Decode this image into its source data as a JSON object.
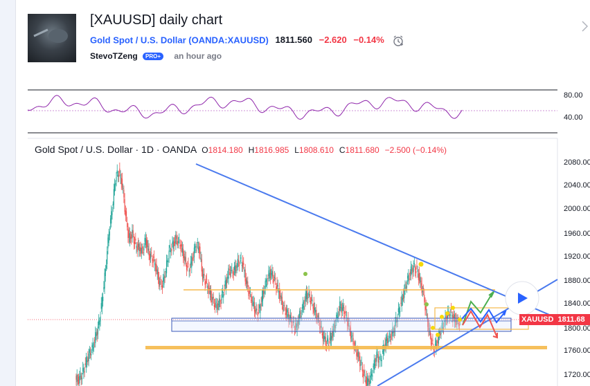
{
  "idea": {
    "title": "[XAUUSD] daily chart",
    "symbol_name": "Gold Spot / U.S. Dollar",
    "symbol_code": "(OANDA:XAUUSD)",
    "price": "1811.560",
    "change": "−2.620",
    "change_pct": "−0.14%",
    "author": "StevoTZeng",
    "badge": "PRO+",
    "time_ago": "an hour ago"
  },
  "chart": {
    "legend": "Gold Spot / U.S. Dollar · 1D · OANDA",
    "o_label": "O",
    "o": "1814.180",
    "h_label": "H",
    "h": "1816.985",
    "l_label": "L",
    "l": "1808.610",
    "c_label": "C",
    "c": "1811.680",
    "change": "−2.500 (−0.14%)",
    "price_tag_symbol": "XAUUSD",
    "price_tag_value": "1811.68",
    "colors": {
      "up": "#26a69a",
      "down": "#ef5350",
      "trend": "#4a7aee",
      "zone": "#f5b94a",
      "rsi": "#8e24aa"
    }
  },
  "rsi": {
    "labels": [
      "80.00",
      "40.00"
    ]
  },
  "price_axis": {
    "labels": [
      "2080.00",
      "2040.00",
      "2000.00",
      "1960.00",
      "1920.00",
      "1880.00",
      "1840.00",
      "1800.00",
      "1760.00",
      "1720.00"
    ]
  },
  "chart_data": {
    "type": "candlestick",
    "title": "Gold Spot / U.S. Dollar · 1D · OANDA",
    "ylim": [
      1705,
      2095
    ],
    "approx_closes": [
      1720,
      1728,
      1745,
      1760,
      1770,
      1790,
      1810,
      1850,
      1900,
      1960,
      2000,
      2050,
      2060,
      2040,
      1990,
      1950,
      1960,
      1940,
      1935,
      1930,
      1950,
      1925,
      1920,
      1905,
      1880,
      1875,
      1900,
      1930,
      1940,
      1950,
      1945,
      1930,
      1910,
      1900,
      1920,
      1940,
      1935,
      1890,
      1880,
      1865,
      1850,
      1840,
      1845,
      1860,
      1880,
      1900,
      1895,
      1905,
      1915,
      1910,
      1880,
      1860,
      1845,
      1830,
      1835,
      1860,
      1880,
      1895,
      1890,
      1875,
      1860,
      1840,
      1830,
      1820,
      1810,
      1805,
      1825,
      1840,
      1860,
      1855,
      1840,
      1825,
      1810,
      1790,
      1780,
      1785,
      1800,
      1820,
      1840,
      1835,
      1820,
      1800,
      1780,
      1765,
      1750,
      1730,
      1715,
      1720,
      1740,
      1760,
      1750,
      1770,
      1785,
      1790,
      1800,
      1820,
      1840,
      1860,
      1880,
      1895,
      1905,
      1900,
      1880,
      1860,
      1820,
      1790,
      1770,
      1780,
      1800,
      1810,
      1825,
      1830,
      1820,
      1815,
      1812
    ]
  }
}
